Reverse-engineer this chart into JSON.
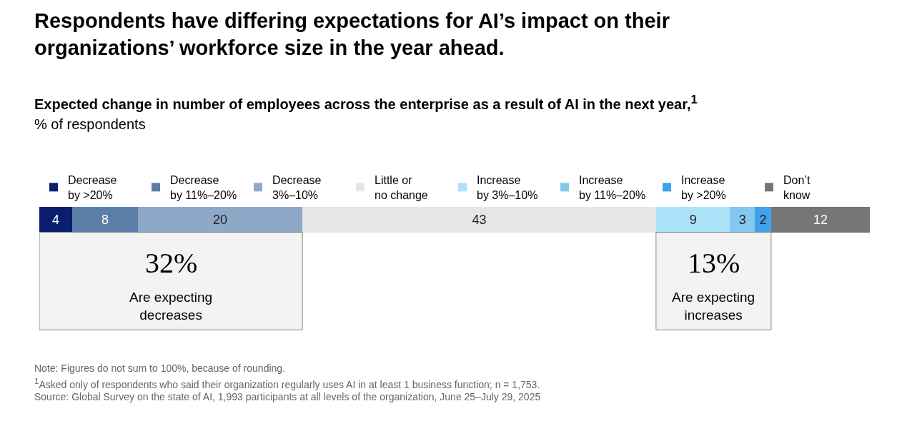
{
  "chart_data": {
    "type": "bar",
    "orientation": "horizontal",
    "stacked": true,
    "title": "Respondents have differing expectations for AI’s impact on their organizations’ workforce size in the year ahead.",
    "subtitle": "Expected change in number of employees across the enterprise as a result of AI in the next year,$^{1}$",
    "categories": [
      null
    ],
    "series": [
      {
        "name": "Decrease by >20%",
        "color": "#0b1e6e",
        "values": [
          4
        ]
      },
      {
        "name": "Decrease by 11%–20%",
        "color": "#5b7ea9",
        "values": [
          8
        ]
      },
      {
        "name": "Decrease 3%–10%",
        "color": "#8ea8c8",
        "values": [
          20
        ]
      },
      {
        "name": "Little or no change",
        "color": "#e6e6e6",
        "values": [
          43
        ]
      },
      {
        "name": "Increase by 3%–10%",
        "color": "#ade3f8",
        "values": [
          9
        ]
      },
      {
        "name": "Increase by 11%–20%",
        "color": "#85c8ef",
        "values": [
          3
        ]
      },
      {
        "name": "Increase by >20%",
        "color": "#3fa2ea",
        "values": [
          2
        ]
      },
      {
        "name": "Don’t know",
        "color": "#767676",
        "values": [
          12
        ]
      }
    ],
    "data_labels": true,
    "legend": "top",
    "bands": [
      {
        "axis": "x",
        "from": 0,
        "to": 32,
        "label": "32%",
        "color": "#888888"
      },
      {
        "axis": "x",
        "from": 75,
        "to": 89,
        "label": "13%",
        "color": "#888888"
      }
    ],
    "annotations": [
      "% of respondents",
      "Are expecting decreases",
      "Are expecting increases",
      "Note: Figures do not sum to 100%, because of rounding.",
      "$^{1}$Asked only of respondents who said their organization regularly uses AI in at least 1 business function; n = 1,753.",
      "Source: Global Survey on the state of AI, 1,993 participants at all levels of the organization, June 25–July 29, 2025"
    ]
  }
}
